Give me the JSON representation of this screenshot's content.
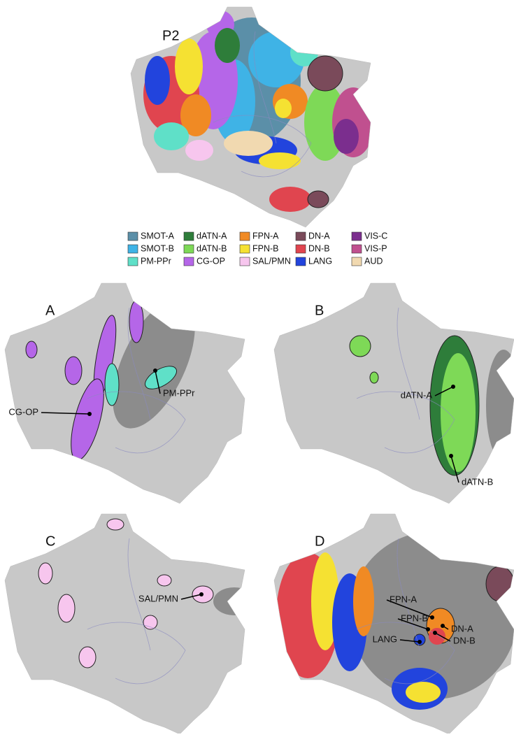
{
  "figure": {
    "title": "P2",
    "legend": [
      {
        "label": "SMOT-A",
        "color": "#5b8fa8"
      },
      {
        "label": "SMOT-B",
        "color": "#3fb3e6"
      },
      {
        "label": "PM-PPr",
        "color": "#5fe0c8"
      },
      {
        "label": "dATN-A",
        "color": "#2e7d3a"
      },
      {
        "label": "dATN-B",
        "color": "#7ed957"
      },
      {
        "label": "CG-OP",
        "color": "#b566e8"
      },
      {
        "label": "FPN-A",
        "color": "#f08a24"
      },
      {
        "label": "FPN-B",
        "color": "#f5e132"
      },
      {
        "label": "SAL/PMN",
        "color": "#f7c6ee"
      },
      {
        "label": "DN-A",
        "color": "#7a4a5a"
      },
      {
        "label": "DN-B",
        "color": "#e0454f"
      },
      {
        "label": "LANG",
        "color": "#2244dd"
      },
      {
        "label": "VIS-C",
        "color": "#7b2e8e"
      },
      {
        "label": "VIS-P",
        "color": "#c0508f"
      },
      {
        "label": "AUD",
        "color": "#f1d9b0"
      }
    ],
    "panels": [
      {
        "label": "A",
        "annotations": [
          "CG-OP",
          "PM-PPr"
        ]
      },
      {
        "label": "B",
        "annotations": [
          "dATN-A",
          "dATN-B"
        ]
      },
      {
        "label": "C",
        "annotations": [
          "SAL/PMN"
        ]
      },
      {
        "label": "D",
        "annotations": [
          "FPN-A",
          "FPN-B",
          "LANG",
          "DN-A",
          "DN-B"
        ]
      }
    ]
  }
}
